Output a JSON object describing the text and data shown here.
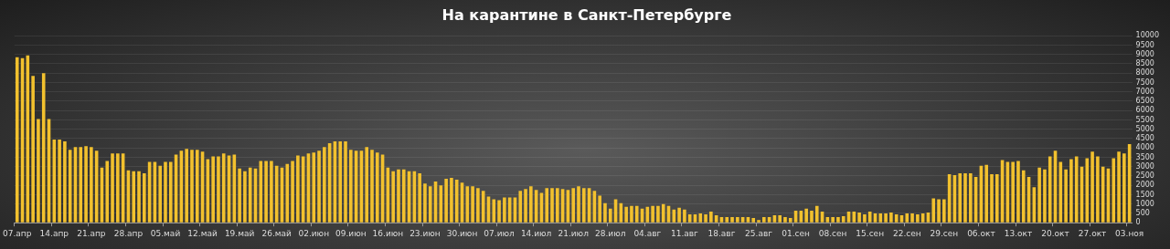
{
  "chart_data": {
    "type": "bar",
    "title": "На карантине в Санкт-Петербурге",
    "categories": [
      "07.апр",
      null,
      null,
      null,
      null,
      null,
      null,
      "14.апр",
      null,
      null,
      null,
      null,
      null,
      null,
      "21.апр",
      null,
      null,
      null,
      null,
      null,
      null,
      "28.апр",
      null,
      null,
      null,
      null,
      null,
      null,
      "05.май",
      null,
      null,
      null,
      null,
      null,
      null,
      "12.май",
      null,
      null,
      null,
      null,
      null,
      null,
      "19.май",
      null,
      null,
      null,
      null,
      null,
      null,
      "26.май",
      null,
      null,
      null,
      null,
      null,
      null,
      "02.июн",
      null,
      null,
      null,
      null,
      null,
      null,
      "09.июн",
      null,
      null,
      null,
      null,
      null,
      null,
      "16.июн",
      null,
      null,
      null,
      null,
      null,
      null,
      "23.июн",
      null,
      null,
      null,
      null,
      null,
      null,
      "30.июн",
      null,
      null,
      null,
      null,
      null,
      null,
      "07.июл",
      null,
      null,
      null,
      null,
      null,
      null,
      "14.июл",
      null,
      null,
      null,
      null,
      null,
      null,
      "21.июл",
      null,
      null,
      null,
      null,
      null,
      null,
      "28.июл",
      null,
      null,
      null,
      null,
      null,
      null,
      "04.авг",
      null,
      null,
      null,
      null,
      null,
      null,
      "11.авг",
      null,
      null,
      null,
      null,
      null,
      null,
      "18.авг",
      null,
      null,
      null,
      null,
      null,
      null,
      "25.авг",
      null,
      null,
      null,
      null,
      null,
      null,
      "01.сен",
      null,
      null,
      null,
      null,
      null,
      null,
      "08.сен",
      null,
      null,
      null,
      null,
      null,
      null,
      "15.сен",
      null,
      null,
      null,
      null,
      null,
      null,
      "22.сен",
      null,
      null,
      null,
      null,
      null,
      null,
      "29.сен",
      null,
      null,
      null,
      null,
      null,
      null,
      "06.окт",
      null,
      null,
      null,
      null,
      null,
      null,
      "13.окт",
      null,
      null,
      null,
      null,
      null,
      null,
      "20.окт",
      null,
      null,
      null,
      null,
      null,
      null,
      "27.окт",
      null,
      null,
      null,
      null,
      null,
      null,
      "03.ноя"
    ],
    "values": [
      8850,
      8800,
      8950,
      7850,
      5550,
      8000,
      5550,
      4450,
      4450,
      4350,
      3900,
      4050,
      4050,
      4100,
      4050,
      3850,
      2950,
      3300,
      3700,
      3700,
      3700,
      2800,
      2750,
      2750,
      2650,
      3250,
      3250,
      3050,
      3250,
      3250,
      3650,
      3850,
      3950,
      3900,
      3900,
      3800,
      3400,
      3550,
      3550,
      3700,
      3600,
      3650,
      2900,
      2750,
      2950,
      2900,
      3300,
      3300,
      3300,
      3050,
      2950,
      3150,
      3300,
      3600,
      3550,
      3700,
      3750,
      3850,
      4050,
      4250,
      4350,
      4350,
      4350,
      3900,
      3850,
      3850,
      4050,
      3900,
      3750,
      3650,
      2950,
      2750,
      2850,
      2850,
      2750,
      2750,
      2650,
      2100,
      1950,
      2200,
      2000,
      2350,
      2400,
      2300,
      2150,
      1950,
      1950,
      1850,
      1700,
      1400,
      1250,
      1200,
      1350,
      1350,
      1350,
      1700,
      1800,
      1950,
      1750,
      1600,
      1850,
      1850,
      1850,
      1800,
      1750,
      1850,
      1950,
      1850,
      1850,
      1700,
      1450,
      1050,
      750,
      1250,
      1050,
      850,
      900,
      900,
      750,
      850,
      900,
      900,
      1000,
      900,
      700,
      800,
      700,
      450,
      450,
      500,
      450,
      600,
      400,
      300,
      300,
      300,
      300,
      300,
      300,
      250,
      150,
      300,
      300,
      400,
      400,
      300,
      250,
      650,
      650,
      750,
      650,
      900,
      600,
      300,
      300,
      300,
      350,
      600,
      600,
      550,
      450,
      600,
      500,
      500,
      500,
      550,
      450,
      400,
      500,
      500,
      450,
      500,
      550,
      1300,
      1250,
      1250,
      2600,
      2550,
      2650,
      2650,
      2650,
      2450,
      3050,
      3100,
      2600,
      2600,
      3350,
      3250,
      3250,
      3300,
      2800,
      2450,
      1900,
      2950,
      2850,
      3550,
      3850,
      3250,
      2850,
      3400,
      3550,
      3000,
      3450,
      3800,
      3550,
      3000,
      2900,
      3450,
      3800,
      3700,
      4200
    ],
    "color": "#f2c12e",
    "ylim": [
      0,
      10000
    ],
    "yticks": [
      0,
      500,
      1000,
      1500,
      2000,
      2500,
      3000,
      3500,
      4000,
      4500,
      5000,
      5500,
      6000,
      6500,
      7000,
      7500,
      8000,
      8500,
      9000,
      9500,
      10000
    ],
    "grid": "y"
  }
}
